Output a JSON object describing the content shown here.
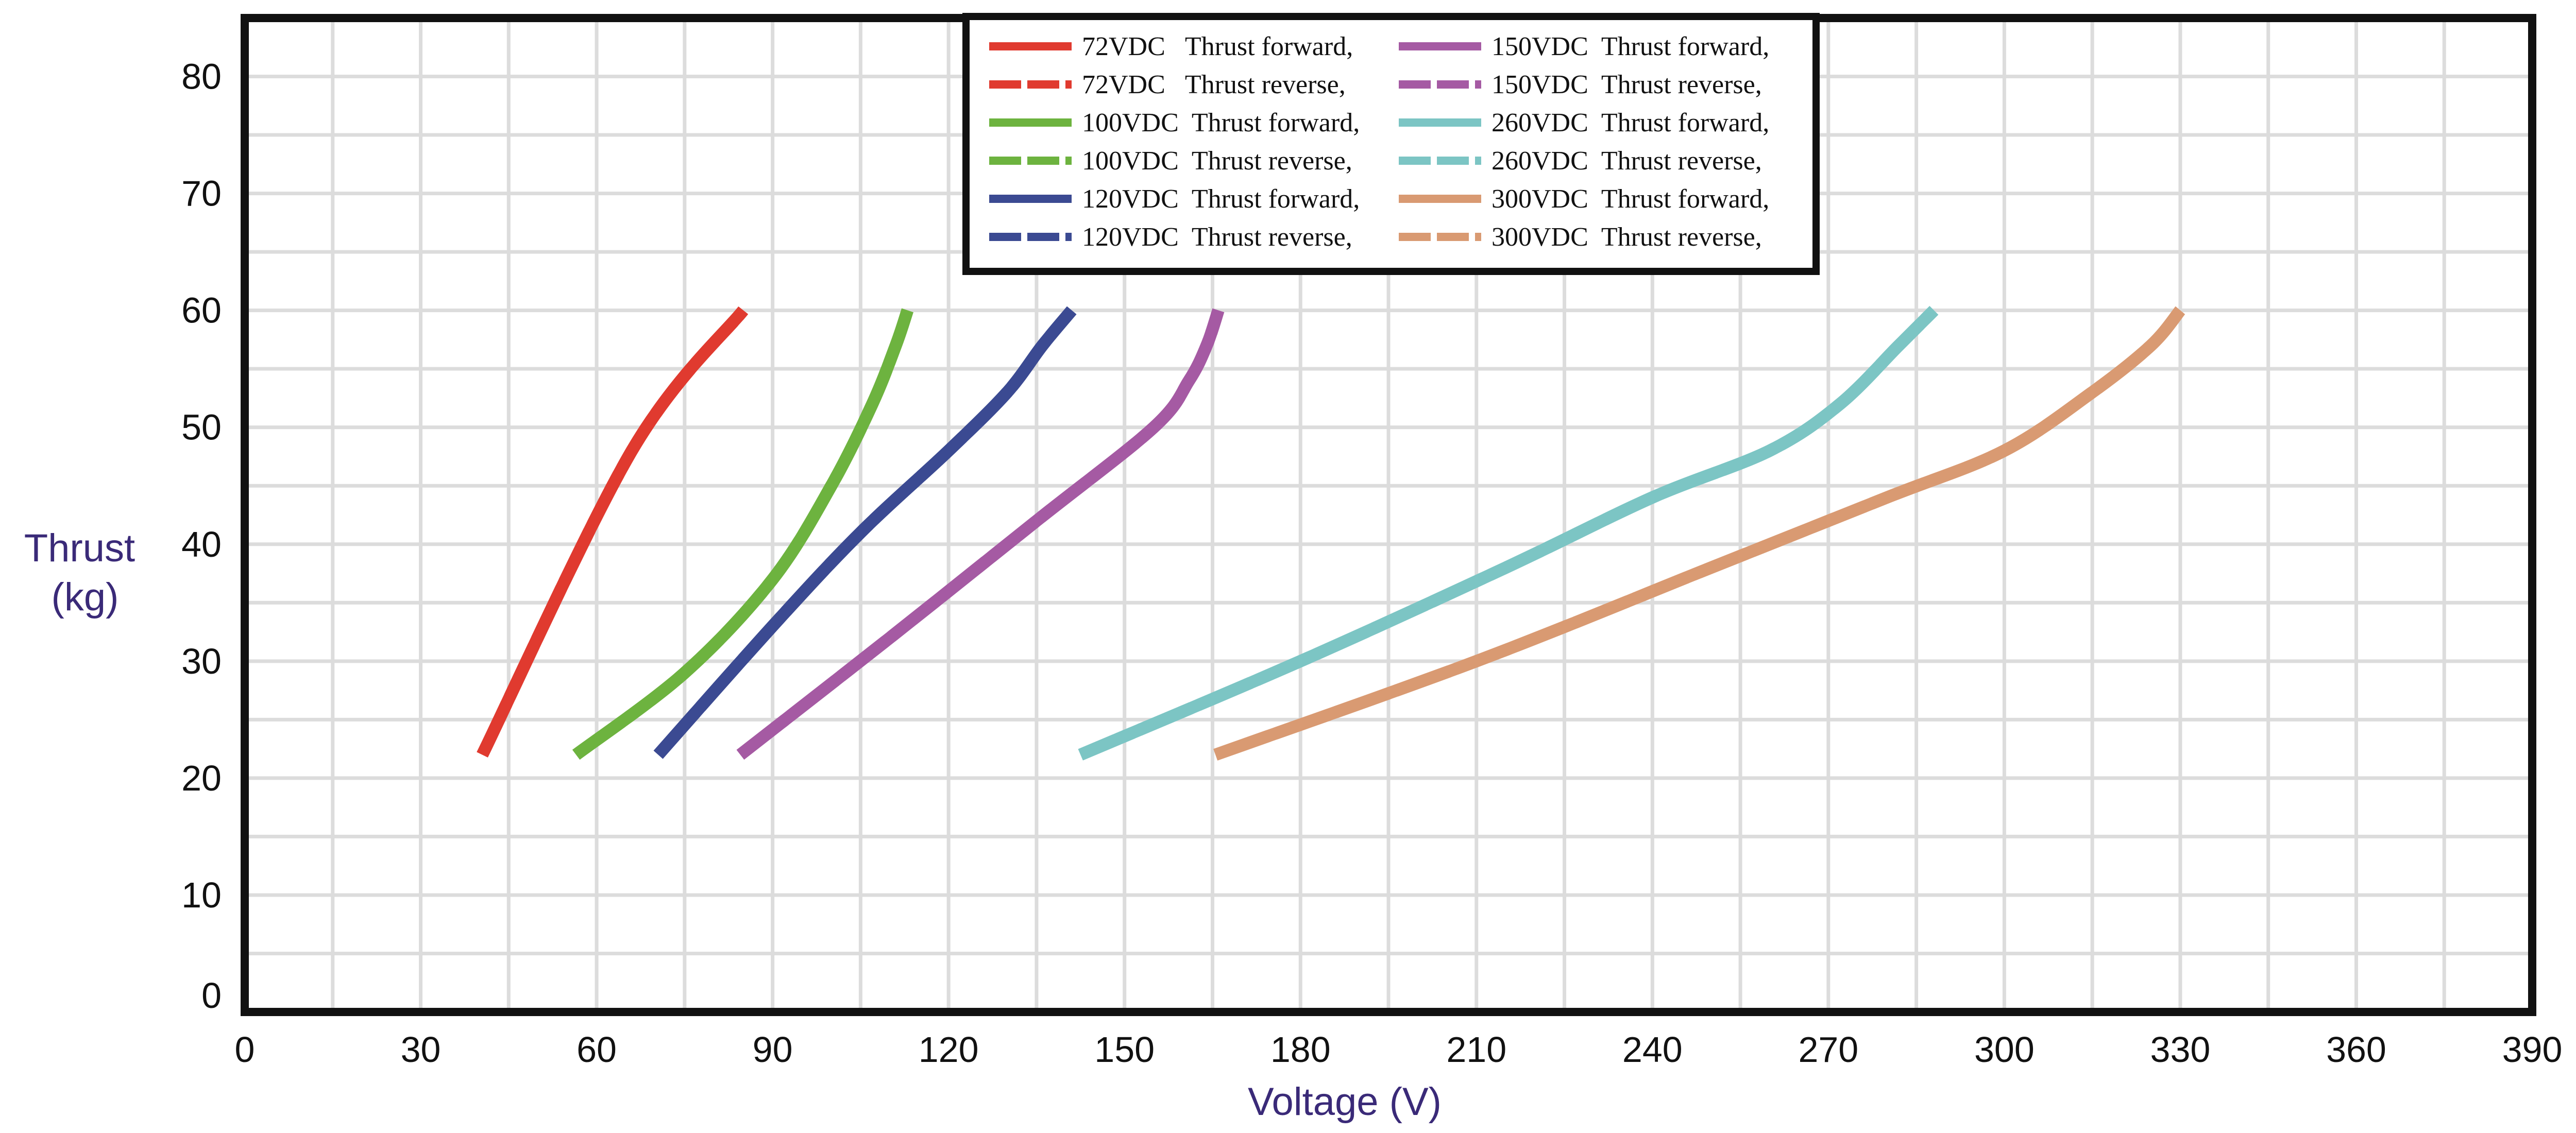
{
  "chart_data": {
    "type": "line",
    "title": "",
    "xlabel": "Voltage (V)",
    "ylabel_lines": [
      "Thrust",
      "(kg)"
    ],
    "xlim": [
      0,
      390
    ],
    "ylim": [
      0,
      85
    ],
    "x_ticks": [
      0,
      30,
      60,
      90,
      120,
      150,
      180,
      210,
      240,
      270,
      300,
      330,
      360,
      390
    ],
    "y_ticks": [
      0,
      10,
      20,
      30,
      40,
      50,
      60,
      70,
      80
    ],
    "x_minor_step": 15,
    "y_minor_step": 5,
    "grid": true,
    "legend_position": "top-center",
    "series": [
      {
        "name": "72VDC   Thrust forward,",
        "color": "#e03a2f",
        "style": "solid",
        "x": [
          40.5,
          66,
          85
        ],
        "y": [
          22,
          48,
          60
        ]
      },
      {
        "name": "72VDC   Thrust reverse,",
        "color": "#e03a2f",
        "style": "dashed",
        "x": [
          40.5,
          66,
          85
        ],
        "y": [
          22,
          48,
          60
        ]
      },
      {
        "name": "100VDC  Thrust forward,",
        "color": "#6db33f",
        "style": "solid",
        "x": [
          56.5,
          75,
          90,
          100,
          107,
          111,
          113
        ],
        "y": [
          22,
          29,
          37,
          45,
          52,
          57,
          60
        ]
      },
      {
        "name": "100VDC  Thrust reverse,",
        "color": "#6db33f",
        "style": "dashed",
        "x": [
          56.5,
          75,
          90,
          100,
          107,
          111,
          113
        ],
        "y": [
          22,
          29,
          37,
          45,
          52,
          57,
          60
        ]
      },
      {
        "name": "120VDC  Thrust forward,",
        "color": "#3b4a92",
        "style": "solid",
        "x": [
          70.5,
          90,
          105,
          120,
          130,
          136,
          141
        ],
        "y": [
          22,
          33,
          41,
          48,
          53,
          57,
          60
        ]
      },
      {
        "name": "120VDC  Thrust reverse,",
        "color": "#3b4a92",
        "style": "dashed",
        "x": [
          70.5,
          90,
          105,
          120,
          130,
          136,
          141
        ],
        "y": [
          22,
          33,
          41,
          48,
          53,
          57,
          60
        ]
      },
      {
        "name": "150VDC  Thrust forward,",
        "color": "#a55aa3",
        "style": "solid",
        "x": [
          84.5,
          110,
          135,
          155,
          161,
          164,
          166
        ],
        "y": [
          22,
          32,
          42,
          50,
          54,
          57,
          60
        ]
      },
      {
        "name": "150VDC  Thrust reverse,",
        "color": "#a55aa3",
        "style": "dashed",
        "x": [
          84.5,
          110,
          135,
          155,
          161,
          164,
          166
        ],
        "y": [
          22,
          32,
          42,
          50,
          54,
          57,
          60
        ]
      },
      {
        "name": "260VDC  Thrust forward,",
        "color": "#7cc5c4",
        "style": "solid",
        "x": [
          142.5,
          180,
          215,
          240,
          260,
          272,
          282,
          288
        ],
        "y": [
          22,
          30,
          38,
          44,
          48,
          52,
          57,
          60
        ]
      },
      {
        "name": "260VDC  Thrust reverse,",
        "color": "#7cc5c4",
        "style": "dashed",
        "x": [
          142.5,
          180,
          215,
          240,
          260,
          272,
          282,
          288
        ],
        "y": [
          22,
          30,
          38,
          44,
          48,
          52,
          57,
          60
        ]
      },
      {
        "name": "300VDC  Thrust forward,",
        "color": "#d99a72",
        "style": "solid",
        "x": [
          165.5,
          210,
          250,
          280,
          300,
          315,
          325,
          330
        ],
        "y": [
          22,
          30,
          38,
          44,
          48,
          53,
          57,
          60
        ]
      },
      {
        "name": "300VDC  Thrust reverse,",
        "color": "#d99a72",
        "style": "dashed",
        "x": [
          165.5,
          210,
          250,
          280,
          300,
          315,
          325,
          330
        ],
        "y": [
          22,
          30,
          38,
          44,
          48,
          53,
          57,
          60
        ]
      }
    ]
  }
}
